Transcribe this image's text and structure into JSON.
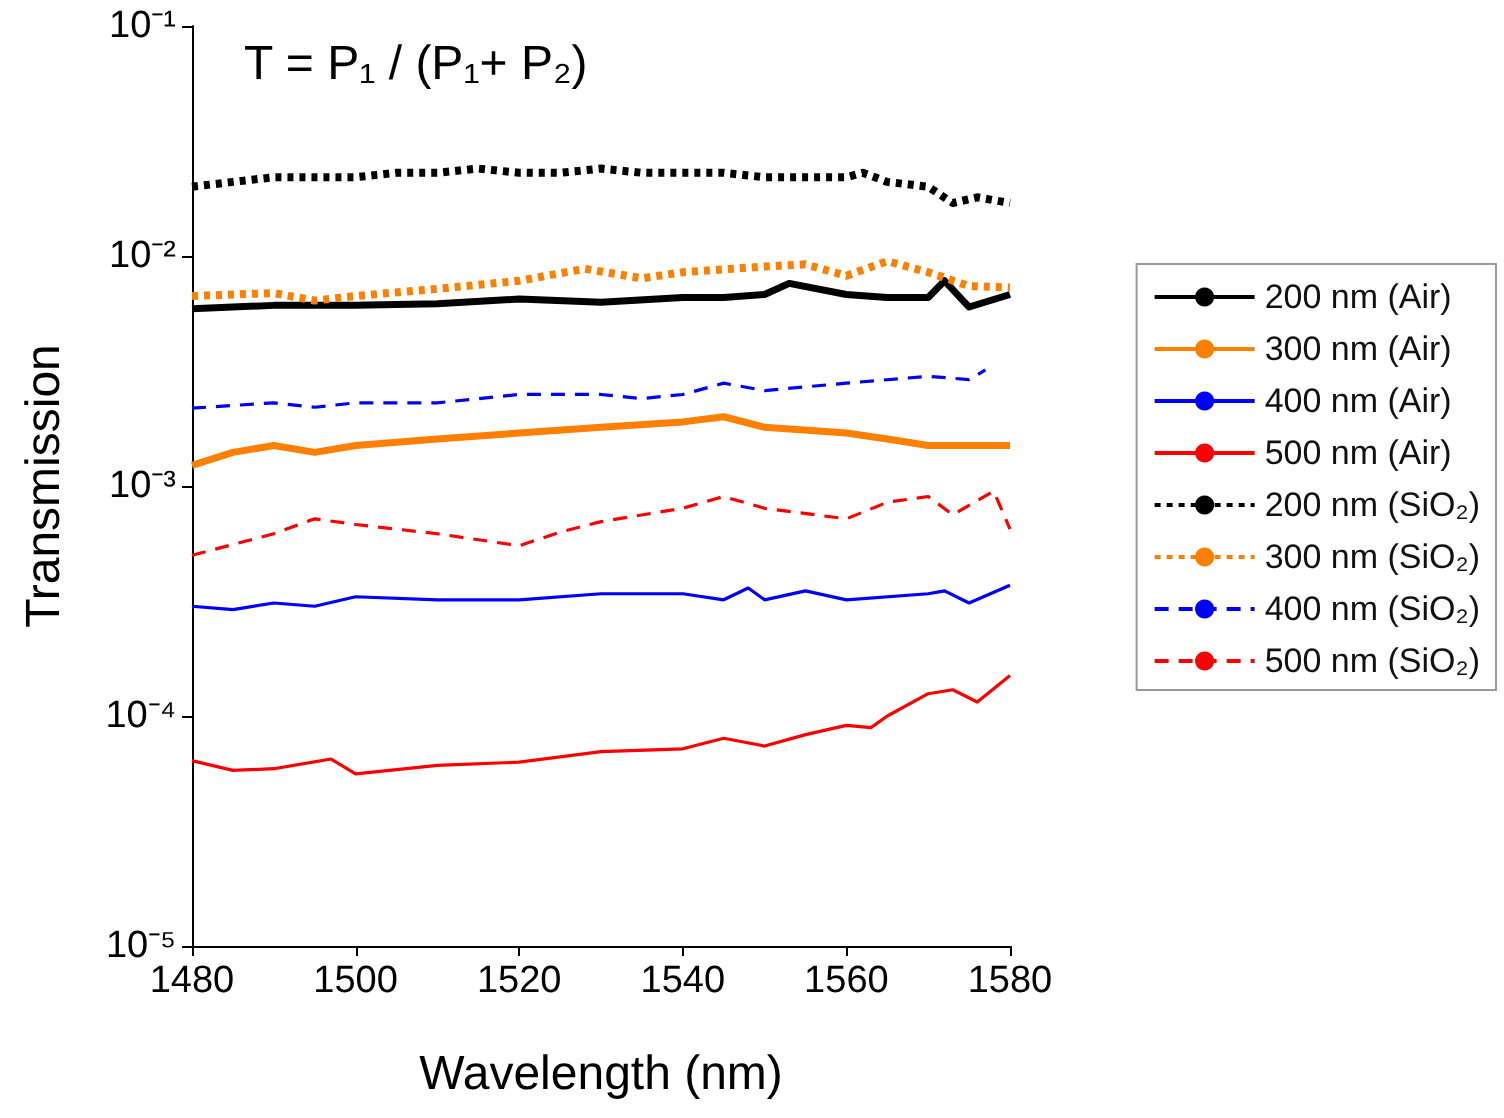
{
  "chart_data": {
    "type": "line",
    "xlabel": "Wavelength (nm)",
    "ylabel": "Transmission",
    "annotations": [
      "T = P₁ / (P₁+ P₂)"
    ],
    "log": "y",
    "grid": false,
    "legend": "right",
    "marker": "none",
    "xlim": [
      1480,
      1580
    ],
    "xticks": [
      1480,
      1500,
      1520,
      1540,
      1560,
      1580
    ],
    "ylim": [
      1e-05,
      0.1
    ],
    "yticks": [
      {
        "value": 1e-05,
        "label": "10⁻⁵"
      },
      {
        "value": 0.0001,
        "label": "10⁻⁴"
      },
      {
        "value": 0.001,
        "label": "10⁻³"
      },
      {
        "value": 0.01,
        "label": "10⁻²"
      },
      {
        "value": 0.1,
        "label": "10⁻¹"
      }
    ],
    "series": [
      {
        "name": "200 nm (Air)",
        "color": "#000000",
        "line_style": "solid",
        "x": [
          1480,
          1490,
          1500,
          1510,
          1520,
          1530,
          1540,
          1545,
          1550,
          1553,
          1560,
          1565,
          1570,
          1572,
          1575,
          1580
        ],
        "values": [
          0.0059,
          0.0061,
          0.0061,
          0.0062,
          0.0065,
          0.0063,
          0.0066,
          0.0066,
          0.0068,
          0.0076,
          0.0068,
          0.0066,
          0.0066,
          0.0078,
          0.006,
          0.0068
        ]
      },
      {
        "name": "300 nm (Air)",
        "color": "#ff8000",
        "line_style": "solid",
        "x": [
          1480,
          1485,
          1490,
          1495,
          1500,
          1510,
          1520,
          1530,
          1540,
          1545,
          1550,
          1560,
          1565,
          1570,
          1575,
          1580
        ],
        "values": [
          0.00123,
          0.0014,
          0.0015,
          0.0014,
          0.0015,
          0.0016,
          0.0017,
          0.0018,
          0.0019,
          0.002,
          0.0018,
          0.0017,
          0.0016,
          0.0015,
          0.0015,
          0.0015
        ]
      },
      {
        "name": "400 nm (Air)",
        "color": "#0000ff",
        "line_style": "solid",
        "x": [
          1480,
          1485,
          1490,
          1495,
          1500,
          1510,
          1520,
          1530,
          1540,
          1545,
          1548,
          1550,
          1555,
          1560,
          1570,
          1572,
          1575,
          1580
        ],
        "values": [
          0.0003,
          0.00029,
          0.00031,
          0.0003,
          0.00033,
          0.00032,
          0.00032,
          0.00034,
          0.00034,
          0.00032,
          0.00036,
          0.00032,
          0.00035,
          0.00032,
          0.00034,
          0.00035,
          0.00031,
          0.00037
        ]
      },
      {
        "name": "500 nm (Air)",
        "color": "#ff0000",
        "line_style": "solid",
        "x": [
          1480,
          1485,
          1490,
          1497,
          1500,
          1510,
          1520,
          1530,
          1540,
          1545,
          1550,
          1555,
          1560,
          1563,
          1565,
          1570,
          1573,
          1576,
          1580
        ],
        "values": [
          6.4e-05,
          5.8e-05,
          5.9e-05,
          6.5e-05,
          5.6e-05,
          6.1e-05,
          6.3e-05,
          7e-05,
          7.2e-05,
          8e-05,
          7.4e-05,
          8.3e-05,
          9.1e-05,
          8.9e-05,
          0.0001,
          0.000125,
          0.00013,
          0.000115,
          0.00015
        ]
      },
      {
        "name": "200 nm (SiO₂)",
        "color": "#000000",
        "line_style": "dotted",
        "x": [
          1480,
          1485,
          1490,
          1495,
          1500,
          1505,
          1510,
          1515,
          1520,
          1525,
          1530,
          1535,
          1540,
          1545,
          1550,
          1555,
          1560,
          1562,
          1565,
          1570,
          1573,
          1576,
          1580
        ],
        "values": [
          0.02,
          0.021,
          0.022,
          0.022,
          0.022,
          0.023,
          0.023,
          0.024,
          0.023,
          0.023,
          0.024,
          0.023,
          0.023,
          0.023,
          0.022,
          0.022,
          0.022,
          0.023,
          0.021,
          0.02,
          0.017,
          0.018,
          0.017
        ]
      },
      {
        "name": "300 nm (SiO₂)",
        "color": "#ff8000",
        "line_style": "dotted",
        "x": [
          1480,
          1490,
          1495,
          1500,
          1510,
          1520,
          1528,
          1535,
          1540,
          1550,
          1555,
          1560,
          1565,
          1570,
          1575,
          1580
        ],
        "values": [
          0.0067,
          0.0069,
          0.0064,
          0.0067,
          0.0072,
          0.0078,
          0.0088,
          0.008,
          0.0085,
          0.009,
          0.0092,
          0.0082,
          0.0095,
          0.0085,
          0.0074,
          0.0073
        ]
      },
      {
        "name": "400 nm (SiO₂)",
        "color": "#0000ff",
        "line_style": "dashed",
        "x": [
          1480,
          1490,
          1495,
          1500,
          1510,
          1520,
          1530,
          1535,
          1540,
          1545,
          1550,
          1560,
          1570,
          1575,
          1577
        ],
        "values": [
          0.00218,
          0.0023,
          0.0022,
          0.0023,
          0.0023,
          0.0025,
          0.0025,
          0.0024,
          0.0025,
          0.0028,
          0.0026,
          0.0028,
          0.003,
          0.0029,
          0.0032
        ]
      },
      {
        "name": "500 nm (SiO₂)",
        "color": "#ff0000",
        "line_style": "dashed",
        "x": [
          1480,
          1490,
          1495,
          1500,
          1510,
          1520,
          1525,
          1530,
          1540,
          1545,
          1550,
          1560,
          1565,
          1570,
          1573,
          1578,
          1580
        ],
        "values": [
          0.0005,
          0.00062,
          0.00072,
          0.00068,
          0.00062,
          0.00055,
          0.00063,
          0.0007,
          0.0008,
          0.0009,
          0.0008,
          0.00072,
          0.00085,
          0.0009,
          0.00075,
          0.00095,
          0.00065
        ]
      }
    ]
  }
}
